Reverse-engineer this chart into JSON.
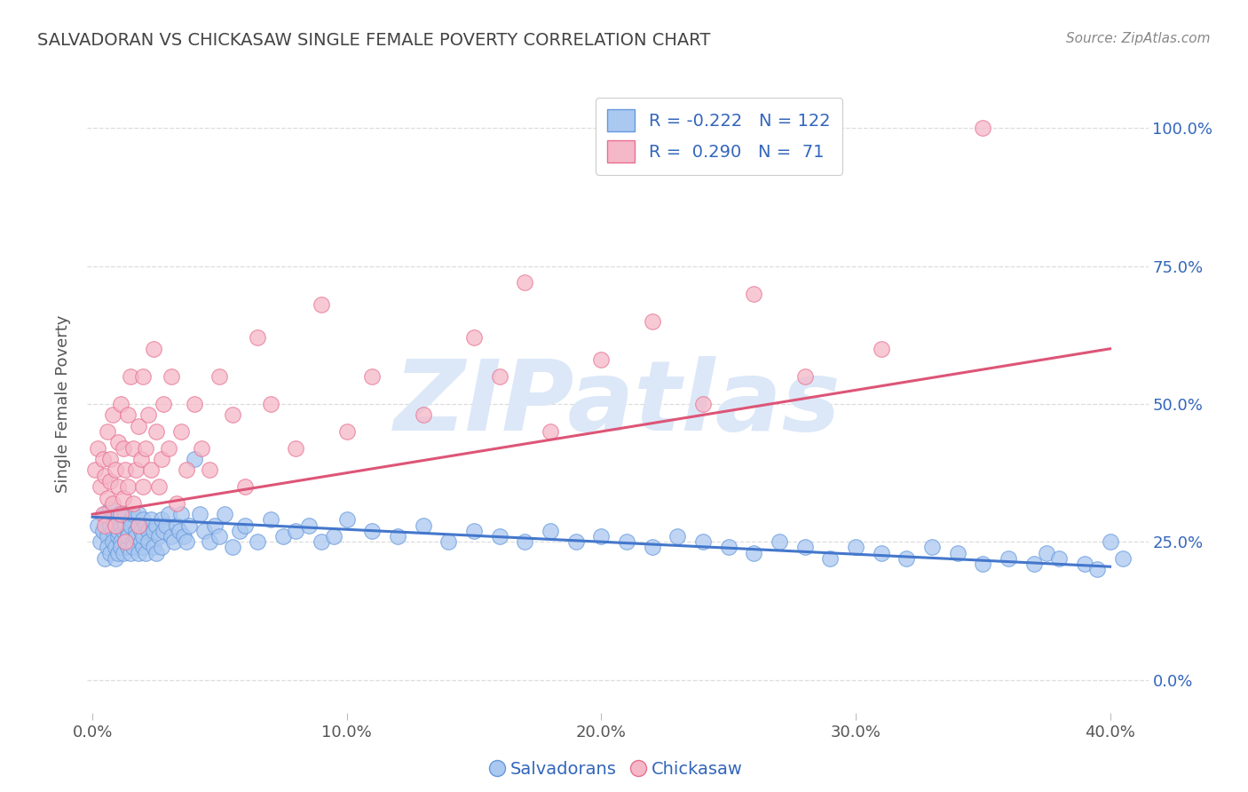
{
  "title": "SALVADORAN VS CHICKASAW SINGLE FEMALE POVERTY CORRELATION CHART",
  "source": "Source: ZipAtlas.com",
  "ylabel": "Single Female Poverty",
  "yticks": [
    "0.0%",
    "25.0%",
    "50.0%",
    "75.0%",
    "100.0%"
  ],
  "ytick_vals": [
    0.0,
    0.25,
    0.5,
    0.75,
    1.0
  ],
  "xtick_vals": [
    0.0,
    0.1,
    0.2,
    0.3,
    0.4
  ],
  "xtick_labels": [
    "0.0%",
    "10.0%",
    "20.0%",
    "30.0%",
    "40.0%"
  ],
  "blue_R": -0.222,
  "blue_N": 122,
  "pink_R": 0.29,
  "pink_N": 71,
  "blue_color": "#aac8f0",
  "pink_color": "#f5b8c8",
  "blue_edge_color": "#6699dd",
  "pink_edge_color": "#e87090",
  "blue_line_color": "#4477cc",
  "pink_line_color": "#dd5577",
  "legend_text_color": "#3366bb",
  "title_color": "#444444",
  "source_color": "#888888",
  "background_color": "#ffffff",
  "grid_color": "#dddddd",
  "watermark_color": "#dce8f8",
  "blue_trendline_x": [
    0.0,
    0.4
  ],
  "blue_trendline_y": [
    0.295,
    0.205
  ],
  "pink_trendline_x": [
    0.0,
    0.4
  ],
  "pink_trendline_y": [
    0.3,
    0.6
  ],
  "xlim": [
    -0.002,
    0.415
  ],
  "ylim": [
    -0.06,
    1.06
  ],
  "blue_scatter_x": [
    0.002,
    0.003,
    0.004,
    0.005,
    0.005,
    0.006,
    0.006,
    0.007,
    0.007,
    0.007,
    0.008,
    0.008,
    0.008,
    0.009,
    0.009,
    0.009,
    0.01,
    0.01,
    0.01,
    0.01,
    0.011,
    0.011,
    0.011,
    0.012,
    0.012,
    0.012,
    0.013,
    0.013,
    0.013,
    0.014,
    0.014,
    0.014,
    0.015,
    0.015,
    0.015,
    0.016,
    0.016,
    0.016,
    0.017,
    0.017,
    0.018,
    0.018,
    0.018,
    0.019,
    0.019,
    0.02,
    0.02,
    0.02,
    0.021,
    0.021,
    0.022,
    0.022,
    0.023,
    0.024,
    0.024,
    0.025,
    0.025,
    0.026,
    0.027,
    0.027,
    0.028,
    0.029,
    0.03,
    0.031,
    0.032,
    0.033,
    0.034,
    0.035,
    0.036,
    0.037,
    0.038,
    0.04,
    0.042,
    0.044,
    0.046,
    0.048,
    0.05,
    0.052,
    0.055,
    0.058,
    0.06,
    0.065,
    0.07,
    0.075,
    0.08,
    0.085,
    0.09,
    0.095,
    0.1,
    0.11,
    0.12,
    0.13,
    0.14,
    0.15,
    0.16,
    0.17,
    0.18,
    0.19,
    0.2,
    0.21,
    0.22,
    0.23,
    0.24,
    0.25,
    0.26,
    0.27,
    0.28,
    0.29,
    0.3,
    0.31,
    0.32,
    0.33,
    0.34,
    0.35,
    0.36,
    0.37,
    0.375,
    0.38,
    0.39,
    0.395,
    0.4,
    0.405
  ],
  "blue_scatter_y": [
    0.28,
    0.25,
    0.27,
    0.3,
    0.22,
    0.26,
    0.24,
    0.28,
    0.23,
    0.31,
    0.27,
    0.25,
    0.29,
    0.24,
    0.28,
    0.22,
    0.3,
    0.26,
    0.27,
    0.23,
    0.28,
    0.25,
    0.24,
    0.29,
    0.27,
    0.23,
    0.28,
    0.25,
    0.3,
    0.24,
    0.27,
    0.26,
    0.29,
    0.23,
    0.28,
    0.25,
    0.3,
    0.24,
    0.27,
    0.26,
    0.28,
    0.23,
    0.3,
    0.25,
    0.27,
    0.29,
    0.24,
    0.26,
    0.28,
    0.23,
    0.27,
    0.25,
    0.29,
    0.24,
    0.27,
    0.28,
    0.23,
    0.26,
    0.29,
    0.24,
    0.27,
    0.28,
    0.3,
    0.26,
    0.25,
    0.28,
    0.27,
    0.3,
    0.26,
    0.25,
    0.28,
    0.4,
    0.3,
    0.27,
    0.25,
    0.28,
    0.26,
    0.3,
    0.24,
    0.27,
    0.28,
    0.25,
    0.29,
    0.26,
    0.27,
    0.28,
    0.25,
    0.26,
    0.29,
    0.27,
    0.26,
    0.28,
    0.25,
    0.27,
    0.26,
    0.25,
    0.27,
    0.25,
    0.26,
    0.25,
    0.24,
    0.26,
    0.25,
    0.24,
    0.23,
    0.25,
    0.24,
    0.22,
    0.24,
    0.23,
    0.22,
    0.24,
    0.23,
    0.21,
    0.22,
    0.21,
    0.23,
    0.22,
    0.21,
    0.2,
    0.25,
    0.22
  ],
  "pink_scatter_x": [
    0.001,
    0.002,
    0.003,
    0.004,
    0.004,
    0.005,
    0.005,
    0.006,
    0.006,
    0.007,
    0.007,
    0.008,
    0.008,
    0.009,
    0.009,
    0.01,
    0.01,
    0.011,
    0.011,
    0.012,
    0.012,
    0.013,
    0.013,
    0.014,
    0.014,
    0.015,
    0.016,
    0.016,
    0.017,
    0.018,
    0.018,
    0.019,
    0.02,
    0.02,
    0.021,
    0.022,
    0.023,
    0.024,
    0.025,
    0.026,
    0.027,
    0.028,
    0.03,
    0.031,
    0.033,
    0.035,
    0.037,
    0.04,
    0.043,
    0.046,
    0.05,
    0.055,
    0.06,
    0.065,
    0.07,
    0.08,
    0.09,
    0.1,
    0.11,
    0.13,
    0.15,
    0.16,
    0.17,
    0.18,
    0.2,
    0.22,
    0.24,
    0.26,
    0.28,
    0.31,
    0.35
  ],
  "pink_scatter_y": [
    0.38,
    0.42,
    0.35,
    0.4,
    0.3,
    0.37,
    0.28,
    0.45,
    0.33,
    0.4,
    0.36,
    0.32,
    0.48,
    0.38,
    0.28,
    0.43,
    0.35,
    0.5,
    0.3,
    0.42,
    0.33,
    0.38,
    0.25,
    0.48,
    0.35,
    0.55,
    0.42,
    0.32,
    0.38,
    0.46,
    0.28,
    0.4,
    0.55,
    0.35,
    0.42,
    0.48,
    0.38,
    0.6,
    0.45,
    0.35,
    0.4,
    0.5,
    0.42,
    0.55,
    0.32,
    0.45,
    0.38,
    0.5,
    0.42,
    0.38,
    0.55,
    0.48,
    0.35,
    0.62,
    0.5,
    0.42,
    0.68,
    0.45,
    0.55,
    0.48,
    0.62,
    0.55,
    0.72,
    0.45,
    0.58,
    0.65,
    0.5,
    0.7,
    0.55,
    0.6,
    1.0
  ]
}
